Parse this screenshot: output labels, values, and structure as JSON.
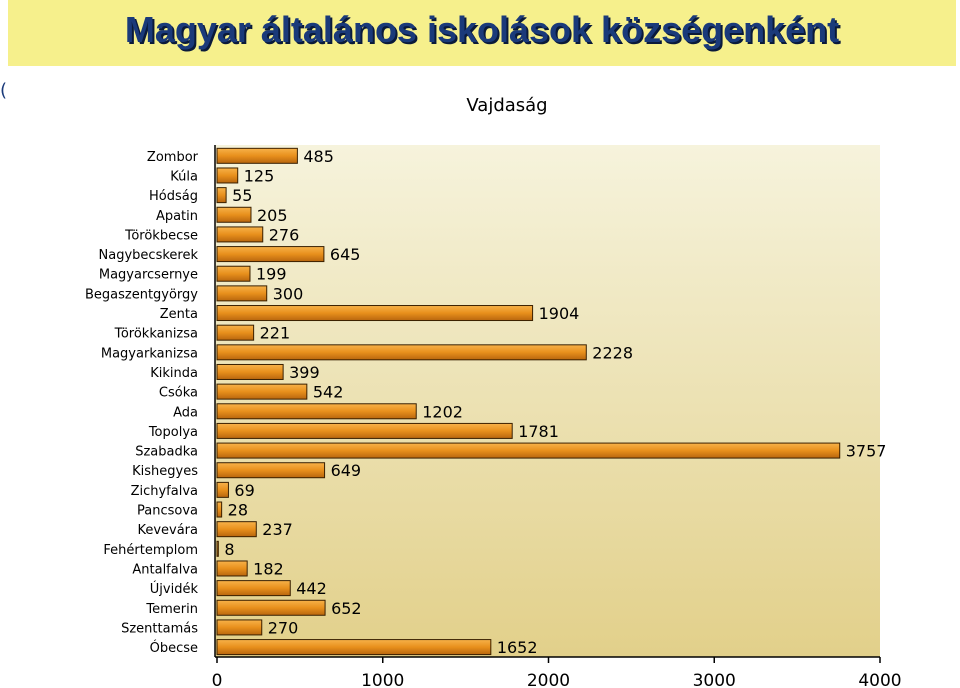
{
  "slide": {
    "title": "Magyar általános iskolások községenként",
    "left_fragment": "("
  },
  "chart_data": {
    "type": "bar",
    "orientation": "horizontal",
    "title": "Vajdaság",
    "categories": [
      "Zombor",
      "Kúla",
      "Hódság",
      "Apatin",
      "Törökbecse",
      "Nagybecskerek",
      "Magyarcsernye",
      "Begaszentgyörgy",
      "Zenta",
      "Törökkanizsa",
      "Magyarkanizsa",
      "Kikinda",
      "Csóka",
      "Ada",
      "Topolya",
      "Szabadka",
      "Kishegyes",
      "Zichyfalva",
      "Pancsova",
      "Kevevára",
      "Fehértemplom",
      "Antalfalva",
      "Újvidék",
      "Temerin",
      "Szenttamás",
      "Óbecse"
    ],
    "values": [
      485,
      125,
      55,
      205,
      276,
      645,
      199,
      300,
      1904,
      221,
      2228,
      399,
      542,
      1202,
      1781,
      3757,
      649,
      69,
      28,
      237,
      8,
      182,
      442,
      652,
      270,
      1652
    ],
    "xlim": [
      0,
      4000
    ],
    "xticks": [
      0,
      1000,
      2000,
      3000,
      4000
    ],
    "grid": false,
    "legend": "none",
    "colors": {
      "bar": "#e8901c",
      "bar_light": "#f7b24a",
      "bar_dark": "#a85a0a",
      "plot_top": "#f6f3dc",
      "plot_bottom": "#e2d08a"
    }
  }
}
